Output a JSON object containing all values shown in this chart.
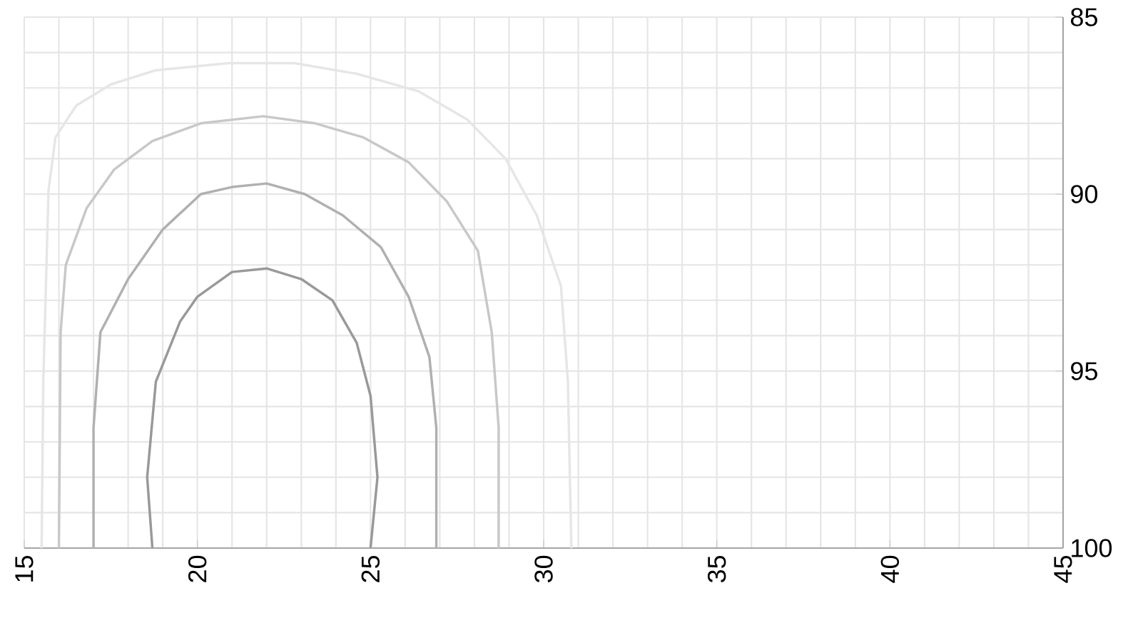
{
  "chart_data": {
    "type": "line",
    "xlim": [
      15,
      45
    ],
    "ylim": [
      100,
      85
    ],
    "xticks": [
      15,
      20,
      25,
      30,
      35,
      40,
      45
    ],
    "yticks": [
      85,
      90,
      95,
      100
    ],
    "grid": true,
    "line_style": "solid",
    "series": [
      {
        "color": "#e6e6e6",
        "x": [
          15.5,
          15.55,
          15.7,
          15.9,
          16.5,
          17.5,
          18.8,
          20.9,
          22.8,
          24.6,
          26.4,
          27.8,
          28.9,
          29.8,
          30.5,
          30.7,
          30.8
        ],
        "values": [
          100,
          95.3,
          89.9,
          88.4,
          87.5,
          86.9,
          86.5,
          86.3,
          86.3,
          86.6,
          87.1,
          87.9,
          89,
          90.6,
          92.6,
          95.3,
          100
        ]
      },
      {
        "color": "#c8c8c8",
        "x": [
          16,
          16.05,
          16.2,
          16.8,
          17.6,
          18.7,
          20.1,
          21.9,
          23.4,
          24.8,
          26.1,
          27.2,
          28.1,
          28.5,
          28.7,
          28.7
        ],
        "values": [
          100,
          93.9,
          92,
          90.4,
          89.3,
          88.5,
          88,
          87.8,
          88,
          88.4,
          89.1,
          90.2,
          91.6,
          93.9,
          96.6,
          100
        ]
      },
      {
        "color": "#b0b0b0",
        "x": [
          17.0,
          17.0,
          17.2,
          18.0,
          19.0,
          20.1,
          21.0,
          22,
          23.1,
          24.2,
          25.3,
          26.1,
          26.7,
          26.9,
          26.9
        ],
        "values": [
          100,
          96.6,
          93.9,
          92.4,
          91,
          90,
          89.8,
          89.7,
          90,
          90.6,
          91.5,
          92.9,
          94.6,
          96.6,
          100
        ]
      },
      {
        "color": "#999999",
        "x": [
          18.7,
          18.55,
          18.8,
          19.5,
          20,
          21,
          22,
          23,
          23.9,
          24.6,
          25,
          25.2,
          25
        ],
        "values": [
          100,
          98,
          95.3,
          93.6,
          92.9,
          92.2,
          92.1,
          92.4,
          93,
          94.2,
          95.7,
          98,
          100
        ]
      }
    ]
  }
}
